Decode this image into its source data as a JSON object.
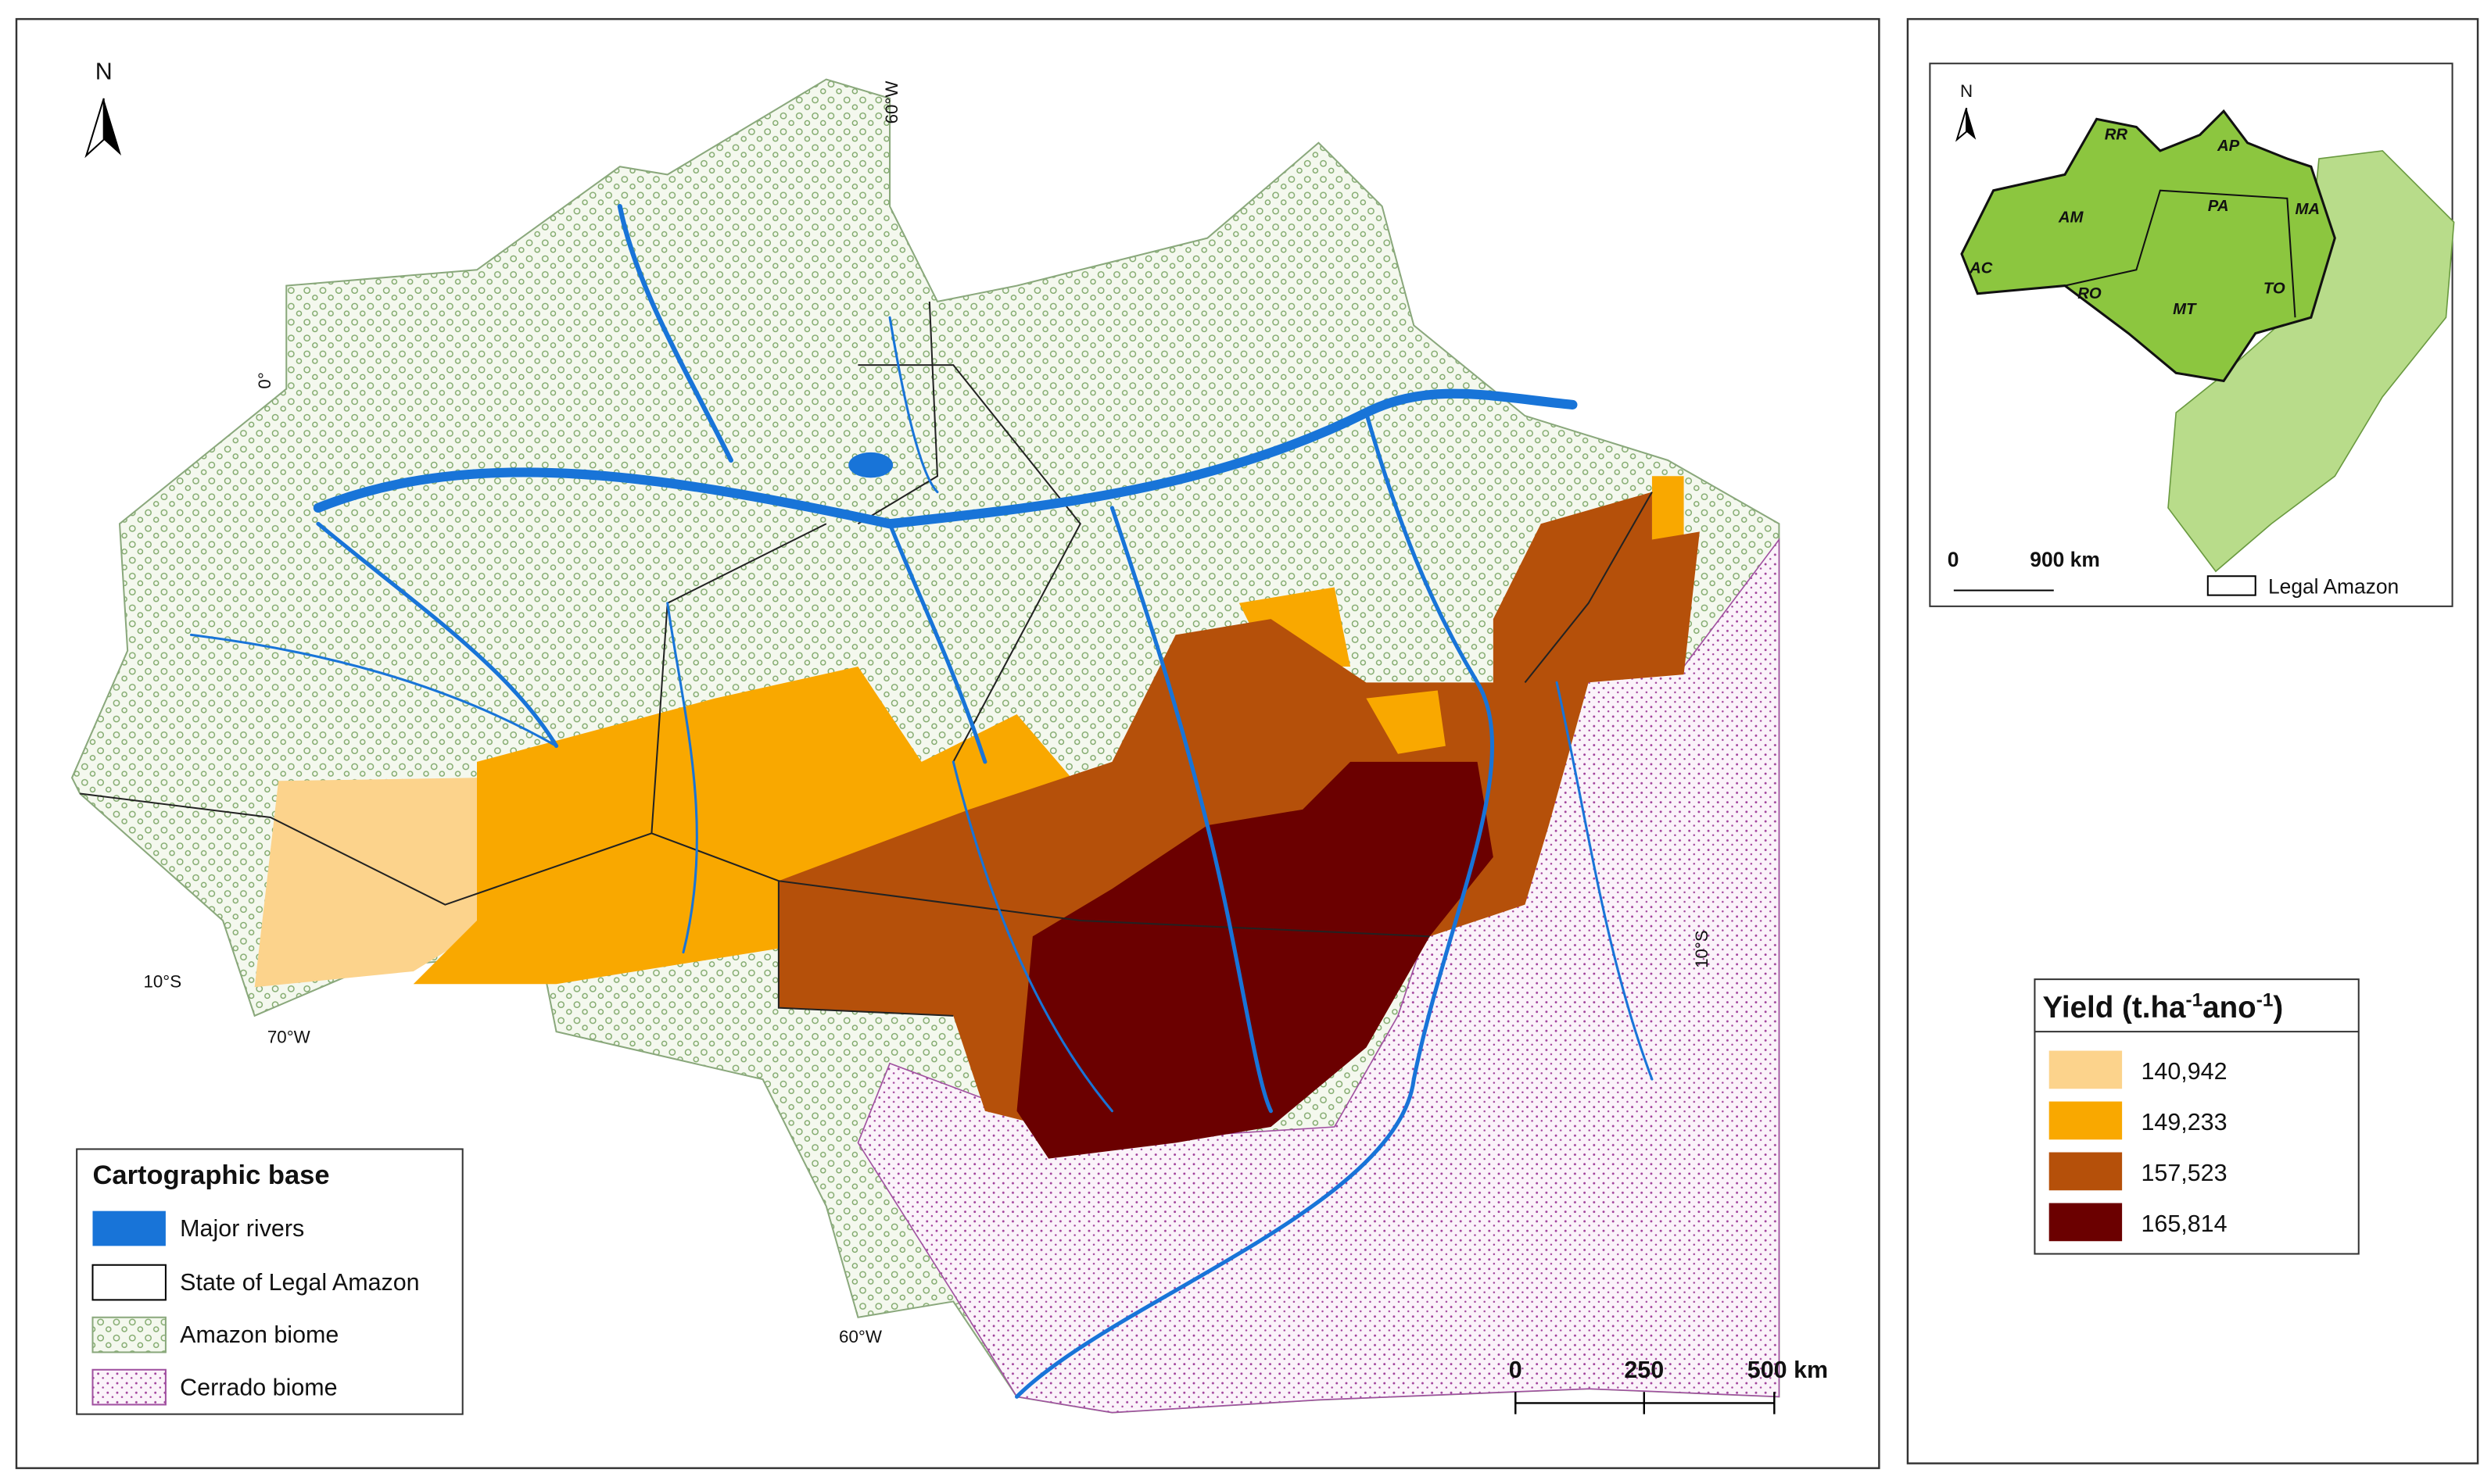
{
  "map": {
    "north": "N",
    "graticule": [
      "60°W",
      "0°",
      "10°S",
      "70°W",
      "10°S",
      "60°W"
    ],
    "scale_bar": [
      "0",
      "250",
      "500 km"
    ],
    "cartographic_legend": {
      "title": "Cartographic base",
      "items": [
        "Major rivers",
        "State of Legal Amazon",
        "Amazon biome",
        "Cerrado biome"
      ]
    }
  },
  "inset": {
    "north": "N",
    "states": [
      "AM",
      "RR",
      "AP",
      "PA",
      "MA",
      "AC",
      "RO",
      "MT",
      "TO"
    ],
    "scale_bar": [
      "0",
      "900 km"
    ],
    "legend": "Legal Amazon"
  },
  "yield_legend": {
    "title": [
      "Yield (t.ha",
      "-1",
      "ano",
      "-1",
      ")"
    ],
    "classes": [
      {
        "label": "140,942",
        "color": "#fcd38c"
      },
      {
        "label": "149,233",
        "color": "#f9a800"
      },
      {
        "label": "157,523",
        "color": "#b5500a"
      },
      {
        "label": "165,814",
        "color": "#6b0000"
      }
    ]
  }
}
